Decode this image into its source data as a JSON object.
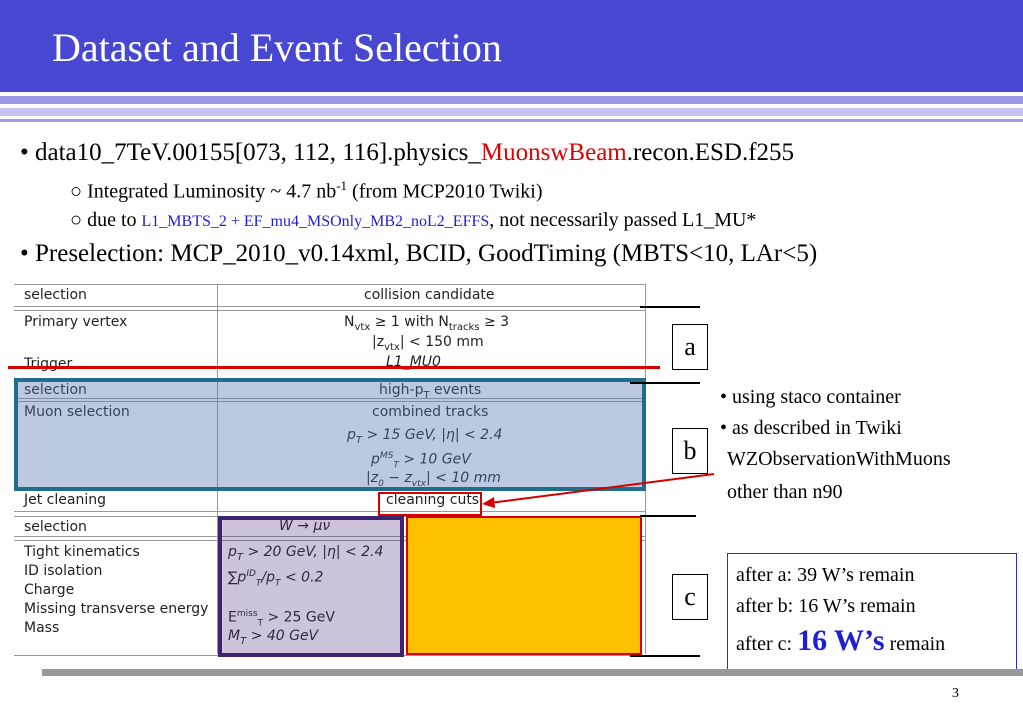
{
  "header": {
    "title": "Dataset and Event Selection"
  },
  "bullets": {
    "dataset_pre": "data10_7TeV.00155[073, 112, 116].physics_",
    "dataset_highlight": "MuonswBeam",
    "dataset_post": ".recon.ESD.f255",
    "lumi_pre": "○ Integrated Luminosity ~ 4.7 nb",
    "lumi_sup": "-1",
    "lumi_post": " (from MCP2010 Twiki)",
    "due_pre": "○ due to ",
    "due_trigger": "L1_MBTS_2 + EF_mu4_MSOnly_MB2_noL2_EFFS",
    "due_post": ", not necessarily passed L1_MU*",
    "preselection": "• Preselection: MCP_2010_v0.14xml, BCID, GoodTiming (MBTS<10, LAr<5)"
  },
  "table": {
    "s1": {
      "header_left": "selection",
      "header_right": "collision candidate",
      "r1_left": "Primary vertex",
      "r1_a": "N",
      "r1_b": "vtx",
      "r1_c": " ≥ 1 with N",
      "r1_d": "tracks",
      "r1_e": " ≥ 3",
      "r2": "|z",
      "r2_sub": "vtx",
      "r2_post": "| < 150 mm",
      "r3_left": "Trigger",
      "r3_right": "L1_MU0"
    },
    "s2": {
      "header_left": "selection",
      "header_right": "high-p",
      "header_sub": "T",
      "header_post": " events",
      "r1_left": "Muon selection",
      "r1_right": "combined tracks",
      "r2": "p",
      "r2_sub": "T",
      "r2_post": " > 15 GeV, |η| < 2.4",
      "r3": "p",
      "r3_sup": "MS",
      "r3_sub": "T",
      "r3_post": " > 10 GeV",
      "r4": "|z",
      "r4_sub0": "0",
      "r4_mid": " − z",
      "r4_sub1": "vtx",
      "r4_post": "| < 10 mm",
      "r5_left": "Jet cleaning",
      "r5_right": "cleaning cuts"
    },
    "s3": {
      "header_left": "selection",
      "header_right": "W → μν",
      "rows_left": [
        "Tight kinematics",
        "ID isolation",
        "Charge",
        "Missing transverse energy",
        "Mass"
      ],
      "r1": "p",
      "r1_sub": "T",
      "r1_post": " > 20 GeV, |η| < 2.4",
      "r2": "∑p",
      "r2_sup": "ID",
      "r2_sub": "T",
      "r2_post": "/p",
      "r2_sub2": "T",
      "r2_post2": " < 0.2",
      "r3": "E",
      "r3_sup": "miss",
      "r3_sub": "T",
      "r3_post": " > 25 GeV",
      "r4": "M",
      "r4_sub": "T",
      "r4_post": " > 40 GeV"
    }
  },
  "labels": {
    "a": "a",
    "b": "b",
    "c": "c"
  },
  "notes": {
    "n1": "• using staco container",
    "n2": "• as described in Twiki",
    "n3": "WZObservationWithMuons",
    "n4": "other than n90"
  },
  "remain": {
    "a": "after a: 39 W’s remain",
    "b": "after b: 16 W’s remain",
    "c_pre": "after c: ",
    "c_big": "16 W’s",
    "c_post": " remain"
  },
  "footer": {
    "page": "3"
  },
  "colors": {
    "title_bar": "#4747d1",
    "highlight_red": "#e00000",
    "trigger_blue": "#1f1fd6",
    "box_b": "#1f6e8c",
    "box_c_fill": "#ffc000",
    "box_w_purple": "#3d2470"
  }
}
